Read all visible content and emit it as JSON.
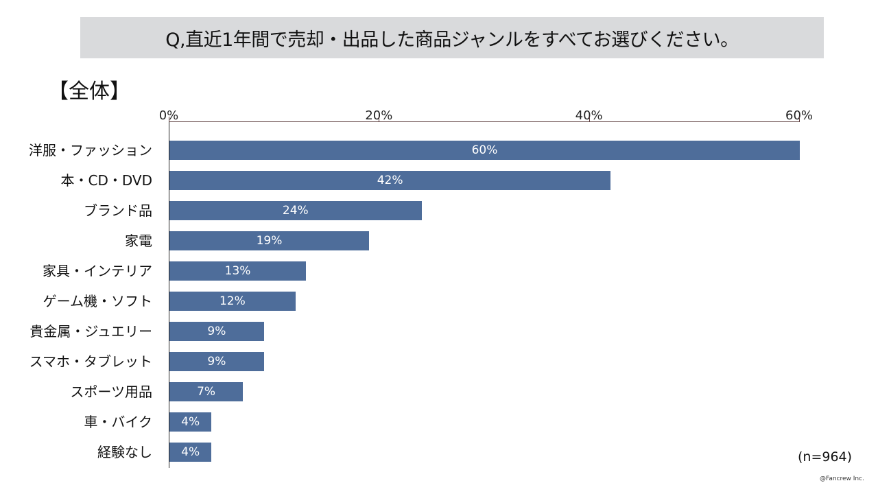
{
  "title": "Q,直近1年間で売却・出品した商品ジャンルをすべてお選びください。",
  "section_label": "【全体】",
  "sample_size": "(n=964)",
  "credit": "@Fancrew Inc.",
  "colors": {
    "bar": "#4e6d9a",
    "title_bg": "#d9dadc",
    "value_text": "#ffffff"
  },
  "axis": {
    "ticks": [
      {
        "label": "0%",
        "value": 0
      },
      {
        "label": "20%",
        "value": 20
      },
      {
        "label": "40%",
        "value": 40
      },
      {
        "label": "60%",
        "value": 60
      }
    ]
  },
  "bars": [
    {
      "category": "洋服・ファッション",
      "value": 60,
      "label": "60%"
    },
    {
      "category": "本・CD・DVD",
      "value": 42,
      "label": "42%"
    },
    {
      "category": "ブランド品",
      "value": 24,
      "label": "24%"
    },
    {
      "category": "家電",
      "value": 19,
      "label": "19%"
    },
    {
      "category": "家具・インテリア",
      "value": 13,
      "label": "13%"
    },
    {
      "category": "ゲーム機・ソフト",
      "value": 12,
      "label": "12%"
    },
    {
      "category": "貴金属・ジュエリー",
      "value": 9,
      "label": "9%"
    },
    {
      "category": "スマホ・タブレット",
      "value": 9,
      "label": "9%"
    },
    {
      "category": "スポーツ用品",
      "value": 7,
      "label": "7%"
    },
    {
      "category": "車・バイク",
      "value": 4,
      "label": "4%"
    },
    {
      "category": "経験なし",
      "value": 4,
      "label": "4%"
    }
  ],
  "chart_data": {
    "type": "bar",
    "orientation": "horizontal",
    "title": "Q,直近1年間で売却・出品した商品ジャンルをすべてお選びください。",
    "subtitle": "【全体】",
    "categories": [
      "洋服・ファッション",
      "本・CD・DVD",
      "ブランド品",
      "家電",
      "家具・インテリア",
      "ゲーム機・ソフト",
      "貴金属・ジュエリー",
      "スマホ・タブレット",
      "スポーツ用品",
      "車・バイク",
      "経験なし"
    ],
    "values": [
      60,
      42,
      24,
      19,
      13,
      12,
      9,
      9,
      7,
      4,
      4
    ],
    "xlabel": "",
    "ylabel": "",
    "xlim": [
      0,
      60
    ],
    "x_ticks": [
      "0%",
      "20%",
      "40%",
      "60%"
    ],
    "grid": false,
    "legend": null,
    "annotations": [
      "(n=964)",
      "@Fancrew Inc."
    ]
  }
}
